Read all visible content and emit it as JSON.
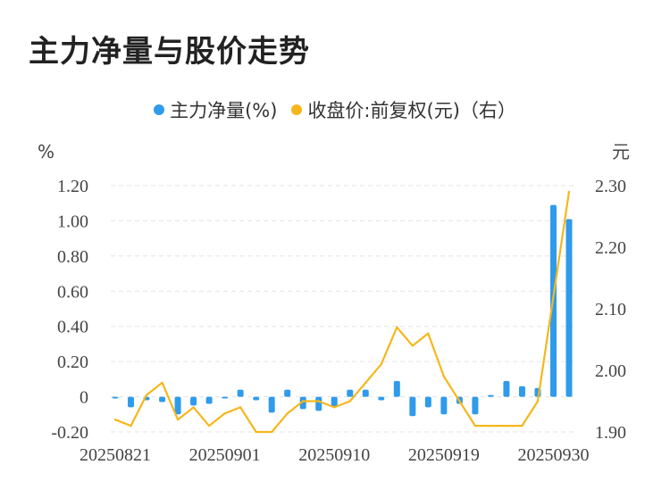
{
  "chart_data": {
    "type": "bar+line",
    "title": "主力净量与股价走势",
    "legend": [
      {
        "label": "主力净量(%)",
        "color": "#2f9bea"
      },
      {
        "label": "收盘价:前复权(元)（右）",
        "color": "#f5b71c"
      }
    ],
    "left_unit": "%",
    "right_unit": "元",
    "left_ticks": [
      "1.20",
      "1.00",
      "0.80",
      "0.60",
      "0.40",
      "0.20",
      "0",
      "-0.20"
    ],
    "right_ticks": [
      "2.30",
      "2.20",
      "2.10",
      "2.00",
      "1.90"
    ],
    "left_ylim": [
      -0.2,
      1.2
    ],
    "right_ylim": [
      1.9,
      2.3
    ],
    "x_tick_labels": [
      "20250821",
      "20250901",
      "20250910",
      "20250919",
      "20250930"
    ],
    "x_tick_indices": [
      0,
      7,
      14,
      21,
      28
    ],
    "bar_color": "#2f9bea",
    "line_color": "#f5b71c",
    "series": [
      {
        "name": "主力净量(%)",
        "values": [
          -0.01,
          -0.06,
          -0.02,
          -0.03,
          -0.1,
          -0.05,
          -0.04,
          -0.01,
          0.04,
          -0.02,
          -0.09,
          0.04,
          -0.07,
          -0.08,
          -0.06,
          0.04,
          0.04,
          -0.02,
          0.09,
          -0.11,
          -0.06,
          -0.1,
          -0.04,
          -0.1,
          0.01,
          0.09,
          0.06,
          0.05,
          1.09,
          1.01
        ]
      },
      {
        "name": "收盘价:前复权(元)（右）",
        "values": [
          1.92,
          1.91,
          1.96,
          1.98,
          1.92,
          1.94,
          1.91,
          1.93,
          1.94,
          1.9,
          1.9,
          1.93,
          1.95,
          1.95,
          1.94,
          1.95,
          1.98,
          2.01,
          2.07,
          2.04,
          2.06,
          1.99,
          1.95,
          1.91,
          1.91,
          1.91,
          1.91,
          1.95,
          2.12,
          2.29
        ]
      }
    ]
  }
}
